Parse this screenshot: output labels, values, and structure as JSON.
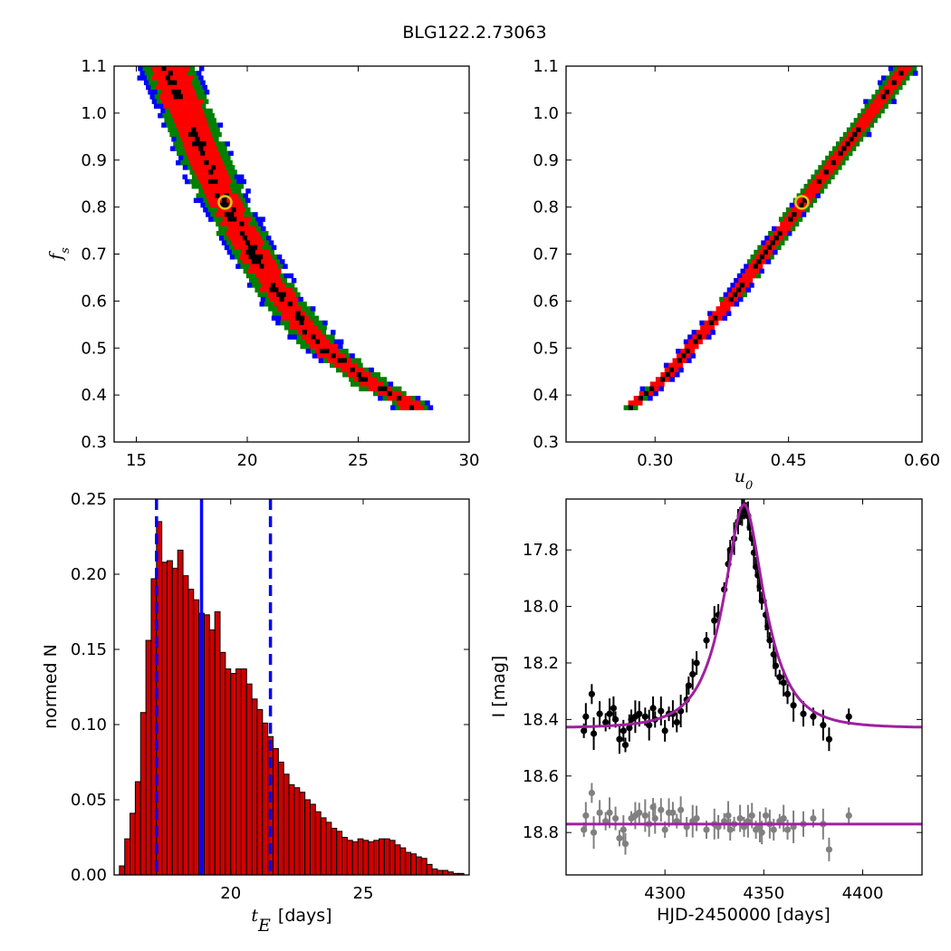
{
  "figure": {
    "title": "BLG122.2.73063"
  },
  "chart_data": [
    {
      "id": "fs_vs_tE",
      "type": "heatmap",
      "xlabel": "",
      "ylabel": "f_s",
      "xlim": [
        14,
        30
      ],
      "ylim": [
        0.3,
        1.1
      ],
      "xticks": [
        15,
        20,
        25,
        30
      ],
      "yticks": [
        0.3,
        0.4,
        0.5,
        0.6,
        0.7,
        0.8,
        0.9,
        1.0,
        1.1
      ],
      "best_fit": {
        "x": 19.0,
        "y": 0.81
      },
      "contour_colors": [
        "#000000",
        "#ff0000",
        "#008000",
        "#0000ff"
      ],
      "ridge": [
        [
          16.3,
          1.1
        ],
        [
          17.2,
          1.0
        ],
        [
          18.0,
          0.9
        ],
        [
          19.0,
          0.8
        ],
        [
          20.2,
          0.7
        ],
        [
          21.5,
          0.6
        ],
        [
          23.3,
          0.5
        ],
        [
          25.6,
          0.42
        ],
        [
          27.3,
          0.38
        ]
      ]
    },
    {
      "id": "fs_vs_u0",
      "type": "heatmap",
      "xlabel": "u_0",
      "ylabel": "",
      "xlim": [
        0.2,
        0.6
      ],
      "ylim": [
        0.3,
        1.1
      ],
      "xticks": [
        0.3,
        0.45,
        0.6
      ],
      "yticks": [
        0.3,
        0.4,
        0.5,
        0.6,
        0.7,
        0.8,
        0.9,
        1.0,
        1.1
      ],
      "best_fit": {
        "x": 0.465,
        "y": 0.81
      },
      "contour_colors": [
        "#000000",
        "#ff0000",
        "#008000",
        "#0000ff"
      ],
      "ridge": [
        [
          0.27,
          0.375
        ],
        [
          0.31,
          0.44
        ],
        [
          0.35,
          0.53
        ],
        [
          0.39,
          0.62
        ],
        [
          0.42,
          0.7
        ],
        [
          0.46,
          0.8
        ],
        [
          0.5,
          0.9
        ],
        [
          0.54,
          1.0
        ],
        [
          0.58,
          1.1
        ]
      ]
    },
    {
      "id": "tE_histogram",
      "type": "bar",
      "xlabel": "t_E  [days]",
      "ylabel": "normed N",
      "xlim": [
        15.6,
        29.0
      ],
      "ylim": [
        0.0,
        0.25
      ],
      "xticks": [
        20,
        25
      ],
      "yticks": [
        0.0,
        0.05,
        0.1,
        0.15,
        0.2,
        0.25
      ],
      "bin_start": 15.8,
      "bin_width": 0.2,
      "values": [
        0.006,
        0.024,
        0.041,
        0.062,
        0.108,
        0.156,
        0.197,
        0.235,
        0.208,
        0.209,
        0.204,
        0.216,
        0.199,
        0.19,
        0.183,
        0.174,
        0.173,
        0.163,
        0.175,
        0.148,
        0.137,
        0.134,
        0.137,
        0.137,
        0.127,
        0.117,
        0.11,
        0.101,
        0.092,
        0.084,
        0.075,
        0.067,
        0.06,
        0.058,
        0.055,
        0.05,
        0.047,
        0.042,
        0.038,
        0.035,
        0.031,
        0.029,
        0.025,
        0.023,
        0.022,
        0.024,
        0.023,
        0.022,
        0.023,
        0.024,
        0.024,
        0.023,
        0.02,
        0.018,
        0.015,
        0.014,
        0.012,
        0.011,
        0.007,
        0.004,
        0.003,
        0.003,
        0.002,
        0.001,
        0.001
      ],
      "bar_color": "#cc0000",
      "median": 18.9,
      "lower": 17.2,
      "upper": 21.5
    },
    {
      "id": "lightcurve",
      "type": "scatter",
      "xlabel": "HJD-2450000 [days]",
      "ylabel": "I [mag]",
      "xlim": [
        4250,
        4430
      ],
      "ylim": [
        18.95,
        17.62
      ],
      "xticks": [
        4300,
        4350,
        4400
      ],
      "yticks": [
        17.8,
        18.0,
        18.2,
        18.4,
        18.6,
        18.8
      ],
      "model": {
        "t0": 4340,
        "tE": 18.9,
        "u0": 0.465,
        "baseline": 18.43,
        "fs": 0.81
      },
      "residual_baseline": 18.77,
      "points": [
        [
          4259,
          18.44
        ],
        [
          4260,
          18.39
        ],
        [
          4263,
          18.31
        ],
        [
          4264,
          18.45
        ],
        [
          4267,
          18.38
        ],
        [
          4270,
          18.41
        ],
        [
          4272,
          18.38
        ],
        [
          4274,
          18.36
        ],
        [
          4275,
          18.4
        ],
        [
          4277,
          18.47
        ],
        [
          4279,
          18.44
        ],
        [
          4280,
          18.49
        ],
        [
          4282,
          18.43
        ],
        [
          4283,
          18.4
        ],
        [
          4285,
          18.39
        ],
        [
          4287,
          18.38
        ],
        [
          4290,
          18.39
        ],
        [
          4292,
          18.42
        ],
        [
          4294,
          18.36
        ],
        [
          4295,
          18.4
        ],
        [
          4298,
          18.37
        ],
        [
          4300,
          18.44
        ],
        [
          4302,
          18.38
        ],
        [
          4304,
          18.38
        ],
        [
          4306,
          18.41
        ],
        [
          4308,
          18.37
        ],
        [
          4311,
          18.33
        ],
        [
          4312,
          18.28
        ],
        [
          4314,
          18.24
        ],
        [
          4316,
          18.2
        ],
        [
          4321,
          18.12
        ],
        [
          4325,
          18.05
        ],
        [
          4327,
          18.03
        ],
        [
          4330,
          17.94
        ],
        [
          4332,
          17.85
        ],
        [
          4333,
          17.8
        ],
        [
          4335,
          17.76
        ],
        [
          4337,
          17.7
        ],
        [
          4338,
          17.68
        ],
        [
          4339,
          17.66
        ],
        [
          4340,
          17.65
        ],
        [
          4341,
          17.66
        ],
        [
          4342,
          17.68
        ],
        [
          4343,
          17.72
        ],
        [
          4344,
          17.76
        ],
        [
          4345,
          17.81
        ],
        [
          4346,
          17.86
        ],
        [
          4347,
          17.89
        ],
        [
          4348,
          17.93
        ],
        [
          4349,
          17.98
        ],
        [
          4351,
          18.03
        ],
        [
          4352,
          18.07
        ],
        [
          4353,
          18.12
        ],
        [
          4355,
          18.17
        ],
        [
          4356,
          18.21
        ],
        [
          4358,
          18.25
        ],
        [
          4360,
          18.27
        ],
        [
          4362,
          18.31
        ],
        [
          4365,
          18.35
        ],
        [
          4370,
          18.38
        ],
        [
          4375,
          18.39
        ],
        [
          4380,
          18.42
        ],
        [
          4383,
          18.47
        ],
        [
          4393,
          18.39
        ]
      ],
      "residual_points": [
        [
          4259,
          18.79
        ],
        [
          4260,
          18.74
        ],
        [
          4263,
          18.66
        ],
        [
          4264,
          18.8
        ],
        [
          4267,
          18.73
        ],
        [
          4270,
          18.76
        ],
        [
          4272,
          18.73
        ],
        [
          4275,
          18.75
        ],
        [
          4277,
          18.82
        ],
        [
          4279,
          18.79
        ],
        [
          4280,
          18.84
        ],
        [
          4283,
          18.75
        ],
        [
          4285,
          18.74
        ],
        [
          4287,
          18.73
        ],
        [
          4290,
          18.74
        ],
        [
          4292,
          18.77
        ],
        [
          4294,
          18.71
        ],
        [
          4295,
          18.75
        ],
        [
          4298,
          18.72
        ],
        [
          4300,
          18.79
        ],
        [
          4302,
          18.73
        ],
        [
          4304,
          18.73
        ],
        [
          4306,
          18.76
        ],
        [
          4308,
          18.72
        ],
        [
          4311,
          18.78
        ],
        [
          4314,
          18.76
        ],
        [
          4316,
          18.75
        ],
        [
          4321,
          18.79
        ],
        [
          4325,
          18.77
        ],
        [
          4327,
          18.78
        ],
        [
          4330,
          18.76
        ],
        [
          4332,
          18.74
        ],
        [
          4333,
          18.79
        ],
        [
          4335,
          18.77
        ],
        [
          4338,
          18.75
        ],
        [
          4340,
          18.78
        ],
        [
          4342,
          18.76
        ],
        [
          4344,
          18.74
        ],
        [
          4346,
          18.79
        ],
        [
          4348,
          18.78
        ],
        [
          4349,
          18.8
        ],
        [
          4351,
          18.74
        ],
        [
          4353,
          18.77
        ],
        [
          4355,
          18.79
        ],
        [
          4358,
          18.76
        ],
        [
          4360,
          18.75
        ],
        [
          4362,
          18.79
        ],
        [
          4365,
          18.78
        ],
        [
          4370,
          18.77
        ],
        [
          4375,
          18.75
        ],
        [
          4380,
          18.77
        ],
        [
          4383,
          18.86
        ],
        [
          4393,
          18.74
        ]
      ],
      "data_color": "#000000",
      "residual_color": "#808080",
      "model_color": "#a0209f"
    }
  ]
}
